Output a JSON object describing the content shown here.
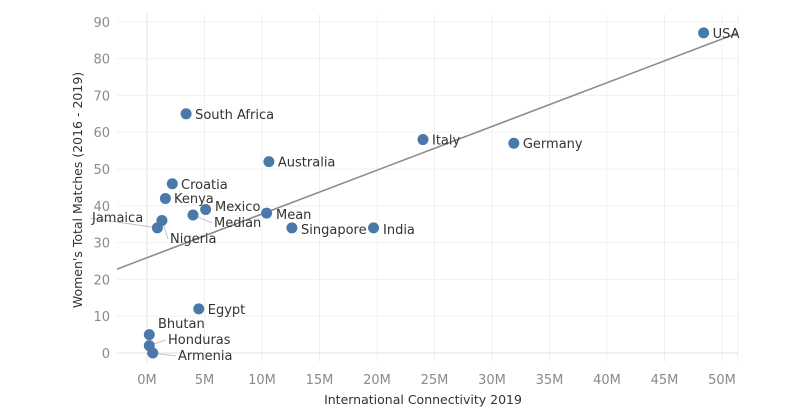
{
  "chart_data": {
    "type": "scatter",
    "title": "",
    "xlabel": "International Connectivity 2019",
    "ylabel": "Women's Total Matches (2016 - 2019)",
    "xlim": [
      -2.6,
      51.4
    ],
    "ylim": [
      -2,
      92
    ],
    "x_unit": "M",
    "x_ticks": [
      0,
      5,
      10,
      15,
      20,
      25,
      30,
      35,
      40,
      45,
      50
    ],
    "x_tick_labels": [
      "0M",
      "5M",
      "10M",
      "15M",
      "20M",
      "25M",
      "30M",
      "35M",
      "40M",
      "45M",
      "50M"
    ],
    "y_ticks": [
      0,
      10,
      20,
      30,
      40,
      50,
      60,
      70,
      80,
      90
    ],
    "y_tick_labels": [
      "0",
      "10",
      "20",
      "30",
      "40",
      "50",
      "60",
      "70",
      "80",
      "90"
    ],
    "grid": true,
    "marker_color": "#4a78a8",
    "trend_color": "#8c8c8c",
    "trend_line": {
      "x": [
        -2.6,
        51.4
      ],
      "y": [
        22.8,
        87.0
      ]
    },
    "points": [
      {
        "label": "USA",
        "x": 48.4,
        "y": 87
      },
      {
        "label": "South Africa",
        "x": 3.4,
        "y": 65
      },
      {
        "label": "Italy",
        "x": 24.0,
        "y": 58
      },
      {
        "label": "Germany",
        "x": 31.9,
        "y": 57
      },
      {
        "label": "Australia",
        "x": 10.6,
        "y": 52
      },
      {
        "label": "Croatia",
        "x": 2.2,
        "y": 46
      },
      {
        "label": "Kenya",
        "x": 1.6,
        "y": 42
      },
      {
        "label": "Mexico",
        "x": 5.1,
        "y": 39
      },
      {
        "label": "Median",
        "x": 4.0,
        "y": 37.5
      },
      {
        "label": "Mean",
        "x": 10.4,
        "y": 38
      },
      {
        "label": "Nigeria",
        "x": 1.3,
        "y": 36
      },
      {
        "label": "Jamaica",
        "x": 0.9,
        "y": 34
      },
      {
        "label": "Singapore",
        "x": 12.6,
        "y": 34
      },
      {
        "label": "India",
        "x": 19.7,
        "y": 34
      },
      {
        "label": "Egypt",
        "x": 4.5,
        "y": 12
      },
      {
        "label": "Bhutan",
        "x": 0.2,
        "y": 5
      },
      {
        "label": "Honduras",
        "x": 0.2,
        "y": 2
      },
      {
        "label": "Armenia",
        "x": 0.5,
        "y": 0
      }
    ]
  }
}
